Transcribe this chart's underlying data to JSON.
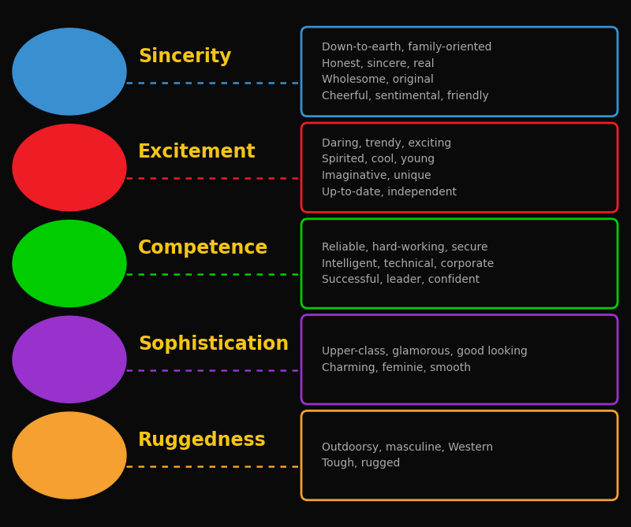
{
  "background_color": "#0a0a0a",
  "items": [
    {
      "label": "Sincerity",
      "circle_color": "#3a8fd1",
      "line_color": "#3a8fd1",
      "box_color": "#3a8fd1",
      "text_lines": [
        "Down-to-earth, family-oriented",
        "Honest, sincere, real",
        "Wholesome, original",
        "Cheerful, sentimental, friendly"
      ]
    },
    {
      "label": "Excitement",
      "circle_color": "#ee1c25",
      "line_color": "#ee1c25",
      "box_color": "#ee1c25",
      "text_lines": [
        "Daring, trendy, exciting",
        "Spirited, cool, young",
        "Imaginative, unique",
        "Up-to-date, independent"
      ]
    },
    {
      "label": "Competence",
      "circle_color": "#00cc00",
      "line_color": "#00cc00",
      "box_color": "#00cc00",
      "text_lines": [
        "Reliable, hard-working, secure",
        "Intelligent, technical, corporate",
        "Successful, leader, confident"
      ]
    },
    {
      "label": "Sophistication",
      "circle_color": "#9932cc",
      "line_color": "#9932cc",
      "box_color": "#9932cc",
      "text_lines": [
        "Upper-class, glamorous, good looking",
        "Charming, feminie, smooth"
      ]
    },
    {
      "label": "Ruggedness",
      "circle_color": "#f5a030",
      "line_color": "#f5a030",
      "box_color": "#f5a030",
      "text_lines": [
        "Outdoorsy, masculine, Western",
        "Tough, rugged"
      ]
    }
  ],
  "label_color": "#f5c518",
  "label_fontsize": 17,
  "text_color": "#aaaaaa",
  "text_fontsize": 10
}
